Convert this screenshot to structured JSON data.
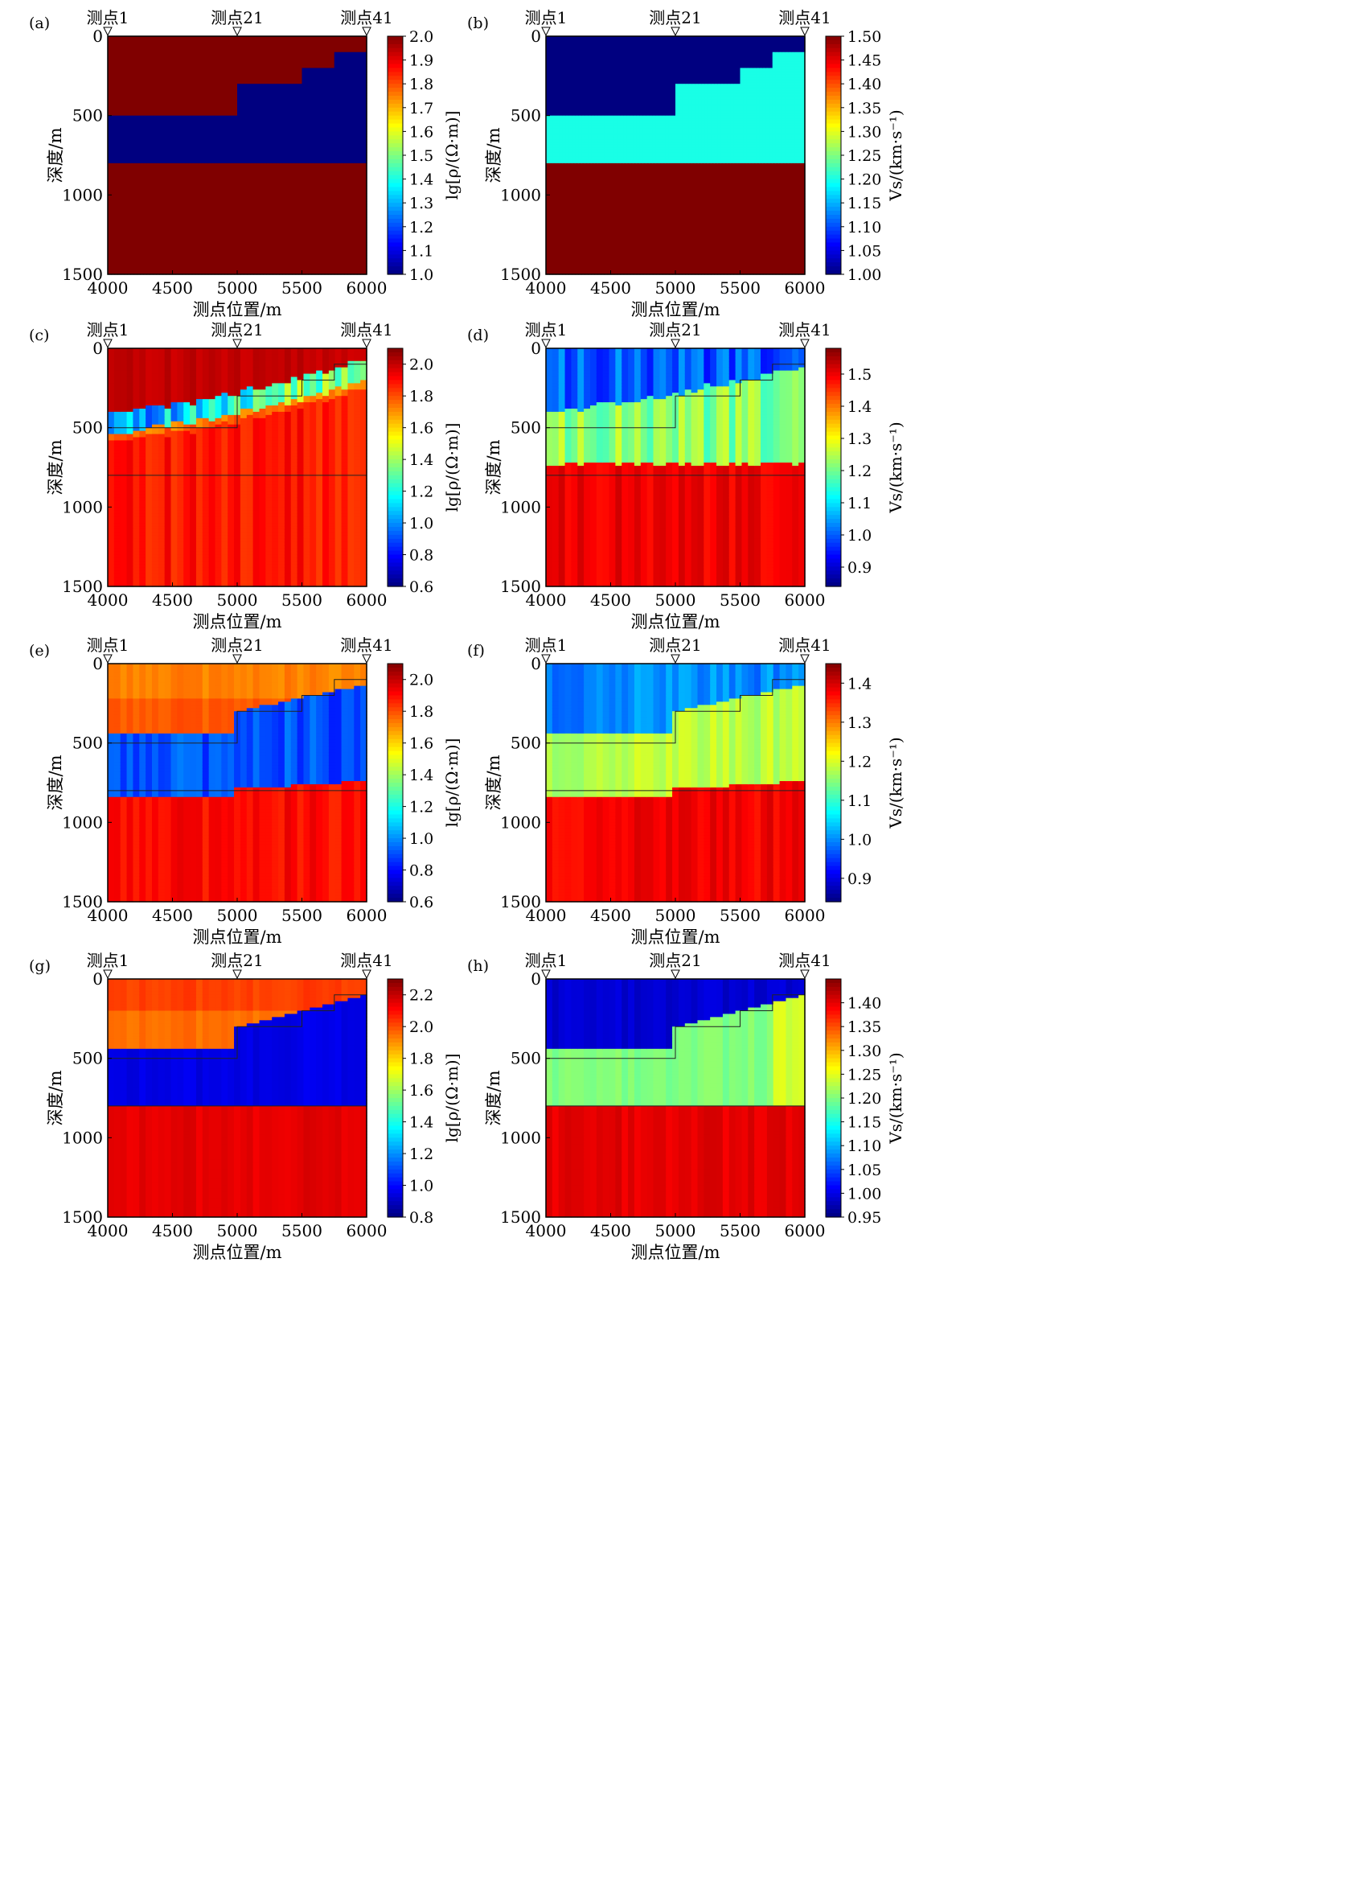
{
  "figure": {
    "panels": [
      {
        "label": "(a)",
        "kind": "resistivity",
        "variant": "true",
        "colorbar_ticks": [
          "1.0",
          "1.1",
          "1.2",
          "1.3",
          "1.4",
          "1.5",
          "1.6",
          "1.7",
          "1.8",
          "1.9",
          "2.0"
        ],
        "colorbar_label": "lg[ρ/(Ω·m)]"
      },
      {
        "label": "(b)",
        "kind": "velocity",
        "variant": "true",
        "colorbar_ticks": [
          "1.00",
          "1.05",
          "1.10",
          "1.15",
          "1.20",
          "1.25",
          "1.30",
          "1.35",
          "1.40",
          "1.45",
          "1.50"
        ],
        "colorbar_label": "Vs/(km·s⁻¹)"
      },
      {
        "label": "(c)",
        "kind": "resistivity",
        "variant": "separate",
        "colorbar_ticks": [
          "0.6",
          "0.8",
          "1.0",
          "1.2",
          "1.4",
          "1.6",
          "1.8",
          "2.0"
        ],
        "colorbar_label": "lg[ρ/(Ω·m)]"
      },
      {
        "label": "(d)",
        "kind": "velocity",
        "variant": "separate",
        "colorbar_ticks": [
          "0.9",
          "1.0",
          "1.1",
          "1.2",
          "1.3",
          "1.4",
          "1.5"
        ],
        "colorbar_label": "Vs/(km·s⁻¹)"
      },
      {
        "label": "(e)",
        "kind": "resistivity",
        "variant": "joint",
        "colorbar_ticks": [
          "0.6",
          "0.8",
          "1.0",
          "1.2",
          "1.4",
          "1.6",
          "1.8",
          "2.0"
        ],
        "colorbar_label": "lg[ρ/(Ω·m)]"
      },
      {
        "label": "(f)",
        "kind": "velocity",
        "variant": "joint",
        "colorbar_ticks": [
          "0.9",
          "1.0",
          "1.1",
          "1.2",
          "1.3",
          "1.4"
        ],
        "colorbar_label": "Vs/(km·s⁻¹)"
      },
      {
        "label": "(g)",
        "kind": "resistivity",
        "variant": "constrained",
        "colorbar_ticks": [
          "0.8",
          "1.0",
          "1.2",
          "1.4",
          "1.6",
          "1.8",
          "2.0",
          "2.2"
        ],
        "colorbar_label": "lg[ρ/(Ω·m)]"
      },
      {
        "label": "(h)",
        "kind": "velocity",
        "variant": "constrained",
        "colorbar_ticks": [
          "0.95",
          "1.00",
          "1.05",
          "1.10",
          "1.15",
          "1.20",
          "1.25",
          "1.30",
          "1.35",
          "1.40"
        ],
        "colorbar_label": "Vs/(km·s⁻¹)"
      }
    ],
    "station_labels": [
      "测点1",
      "测点21",
      "测点41"
    ],
    "x_ticks": [
      "4000",
      "4500",
      "5000",
      "5500",
      "6000"
    ],
    "y_ticks": [
      "0",
      "500",
      "1000",
      "1500"
    ],
    "xlabel": "测点位置/m",
    "ylabel": "深度/m"
  },
  "chart_data": [
    {
      "panel": "(a)",
      "type": "heatmap",
      "xlabel": "测点位置/m",
      "ylabel": "深度/m",
      "xlim": [
        4000,
        6000
      ],
      "ylim": [
        0,
        1500
      ],
      "y_inverted": true,
      "colorbar": {
        "label": "lg[ρ/(Ω·m)]",
        "range": [
          1.0,
          2.0
        ]
      },
      "model_layers": [
        {
          "zone": "upper layer",
          "value": 2.0,
          "bottom_depth_by_segment": [
            {
              "x_range": [
                4000,
                5000
              ],
              "bottom_depth": 500
            },
            {
              "x_range": [
                5000,
                5500
              ],
              "bottom_depth": 300
            },
            {
              "x_range": [
                5500,
                5750
              ],
              "bottom_depth": 200
            },
            {
              "x_range": [
                5750,
                6000
              ],
              "bottom_depth": 100
            }
          ]
        },
        {
          "zone": "low-resistivity layer",
          "value": 1.0,
          "bottom_depth": 800
        },
        {
          "zone": "basement",
          "value": 2.0,
          "bottom_depth": 1500
        }
      ]
    },
    {
      "panel": "(b)",
      "type": "heatmap",
      "xlabel": "测点位置/m",
      "ylabel": "深度/m",
      "xlim": [
        4000,
        6000
      ],
      "ylim": [
        0,
        1500
      ],
      "y_inverted": true,
      "colorbar": {
        "label": "Vs/(km·s⁻¹)",
        "range": [
          1.0,
          1.5
        ]
      },
      "model_layers": [
        {
          "zone": "upper layer",
          "value": 1.0
        },
        {
          "zone": "middle layer",
          "value": 1.2,
          "bottom_depth": 800
        },
        {
          "zone": "basement",
          "value": 1.5,
          "bottom_depth": 1500
        }
      ]
    },
    {
      "panel": "(c)",
      "type": "heatmap",
      "xlim": [
        4000,
        6000
      ],
      "ylim": [
        0,
        1500
      ],
      "y_inverted": true,
      "colorbar": {
        "label": "lg[ρ/(Ω·m)]",
        "range": [
          0.6,
          2.1
        ]
      },
      "zones": [
        {
          "zone": "upper layer",
          "approx_value": 2.0,
          "bottom_depth": [
            400,
            80
          ]
        },
        {
          "zone": "middle layer",
          "approx_value_range": [
            0.9,
            1.5
          ],
          "thickness": 130
        },
        {
          "zone": "basement",
          "approx_value": 1.9
        }
      ]
    },
    {
      "panel": "(d)",
      "type": "heatmap",
      "xlim": [
        4000,
        6000
      ],
      "ylim": [
        0,
        1500
      ],
      "y_inverted": true,
      "colorbar": {
        "label": "Vs/(km·s⁻¹)",
        "range": [
          0.84,
          1.58
        ]
      },
      "zones": [
        {
          "zone": "upper layer",
          "approx_value": 1.0,
          "bottom_depth": [
            400,
            120
          ]
        },
        {
          "zone": "middle layer",
          "approx_value": 1.22,
          "bottom_depth": 730
        },
        {
          "zone": "basement",
          "approx_value": 1.5
        }
      ]
    },
    {
      "panel": "(e)",
      "type": "heatmap",
      "xlim": [
        4000,
        6000
      ],
      "ylim": [
        0,
        1500
      ],
      "y_inverted": true,
      "colorbar": {
        "label": "lg[ρ/(Ω·m)]",
        "range": [
          0.6,
          2.1
        ]
      },
      "zones": [
        {
          "zone": "upper layer",
          "approx_value": 1.7,
          "bottom_depth": [
            450,
            130
          ]
        },
        {
          "zone": "middle layer",
          "approx_value": 0.9,
          "bottom_depth": [
            850,
            740
          ]
        },
        {
          "zone": "basement",
          "approx_value": 1.9
        }
      ]
    },
    {
      "panel": "(f)",
      "type": "heatmap",
      "xlim": [
        4000,
        6000
      ],
      "ylim": [
        0,
        1500
      ],
      "y_inverted": true,
      "colorbar": {
        "label": "Vs/(km·s⁻¹)",
        "range": [
          0.84,
          1.45
        ]
      },
      "zones": [
        {
          "zone": "upper layer",
          "approx_value": 1.0,
          "bottom_depth": [
            450,
            130
          ]
        },
        {
          "zone": "middle layer",
          "approx_value": 1.2,
          "bottom_depth": [
            850,
            740
          ]
        },
        {
          "zone": "basement",
          "approx_value": 1.38
        }
      ]
    },
    {
      "panel": "(g)",
      "type": "heatmap",
      "xlim": [
        4000,
        6000
      ],
      "ylim": [
        0,
        1500
      ],
      "y_inverted": true,
      "colorbar": {
        "label": "lg[ρ/(Ω·m)]",
        "range": [
          0.8,
          2.3
        ]
      },
      "zones": [
        {
          "zone": "upper layer",
          "approx_value": 2.0,
          "bottom_depth": [
            450,
            100
          ]
        },
        {
          "zone": "middle layer",
          "approx_value": 0.95,
          "bottom_depth": 800
        },
        {
          "zone": "basement",
          "approx_value": 2.15
        }
      ]
    },
    {
      "panel": "(h)",
      "type": "heatmap",
      "xlim": [
        4000,
        6000
      ],
      "ylim": [
        0,
        1500
      ],
      "y_inverted": true,
      "colorbar": {
        "label": "Vs/(km·s⁻¹)",
        "range": [
          0.95,
          1.45
        ]
      },
      "zones": [
        {
          "zone": "upper layer",
          "approx_value": 0.99,
          "bottom_depth": [
            450,
            100
          ]
        },
        {
          "zone": "middle layer",
          "approx_value": 1.2,
          "bottom_depth": 800
        },
        {
          "zone": "basement",
          "approx_value": 1.4
        }
      ]
    }
  ]
}
